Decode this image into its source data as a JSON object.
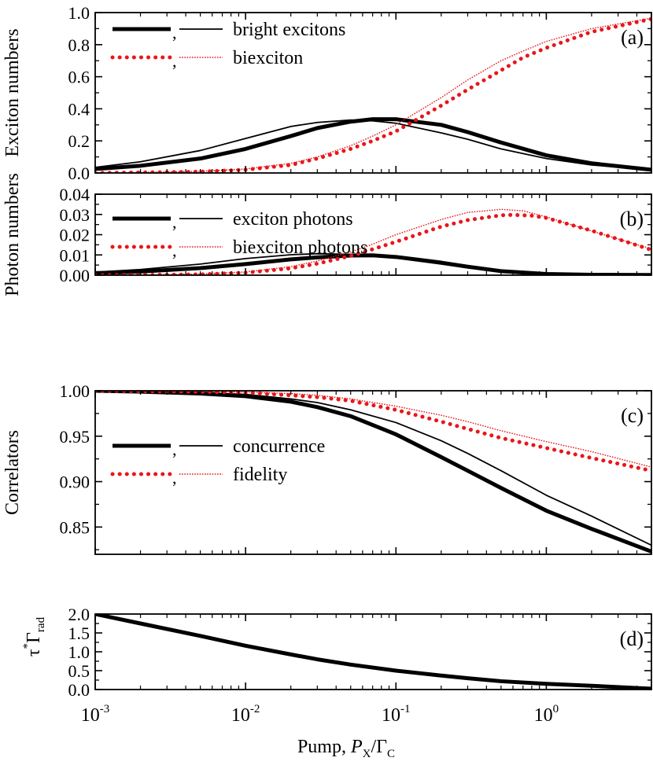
{
  "xlabel": {
    "prefix": "Pump, ",
    "P": "P",
    "P_sub": "X",
    "slash": "/",
    "G": "Γ",
    "G_sub": "C"
  },
  "colors": {
    "black": "#000000",
    "red": "#e8161a"
  },
  "chart_data": [
    {
      "id": "a",
      "type": "line",
      "panel_label": "(a)",
      "ylabel": "Exciton numbers",
      "xscale": "log",
      "xlim": [
        0.001,
        5
      ],
      "ylim": [
        0,
        1.0
      ],
      "yticks": [
        0,
        0.2,
        0.4,
        0.6,
        0.8,
        1.0
      ],
      "ytick_labels": [
        "0.0",
        "0.2",
        "0.4",
        "0.6",
        "0.8",
        "1.0"
      ],
      "legend_position": "top-left",
      "legend": [
        {
          "label": "bright excitons",
          "marks": [
            "black-thick",
            "black-thin"
          ]
        },
        {
          "label": "biexciton",
          "marks": [
            "red-dotted-thick",
            "red-dotted-thin"
          ]
        }
      ],
      "series": [
        {
          "style": "black-thick",
          "x": [
            0.001,
            0.002,
            0.005,
            0.01,
            0.02,
            0.03,
            0.05,
            0.07,
            0.1,
            0.2,
            0.3,
            0.5,
            1,
            2,
            5
          ],
          "y": [
            0.025,
            0.045,
            0.09,
            0.15,
            0.23,
            0.28,
            0.32,
            0.335,
            0.335,
            0.3,
            0.255,
            0.19,
            0.11,
            0.06,
            0.02
          ]
        },
        {
          "style": "black-thin",
          "x": [
            0.001,
            0.002,
            0.005,
            0.01,
            0.02,
            0.03,
            0.05,
            0.07,
            0.1,
            0.2,
            0.3,
            0.5,
            1,
            2,
            5
          ],
          "y": [
            0.035,
            0.07,
            0.14,
            0.215,
            0.29,
            0.315,
            0.33,
            0.325,
            0.31,
            0.25,
            0.21,
            0.15,
            0.09,
            0.05,
            0.02
          ]
        },
        {
          "style": "red-dotted-thick",
          "x": [
            0.001,
            0.002,
            0.005,
            0.01,
            0.02,
            0.03,
            0.05,
            0.07,
            0.1,
            0.2,
            0.3,
            0.5,
            0.7,
            1,
            2,
            5
          ],
          "y": [
            0.0,
            0.003,
            0.008,
            0.02,
            0.05,
            0.09,
            0.15,
            0.2,
            0.26,
            0.42,
            0.52,
            0.64,
            0.72,
            0.78,
            0.88,
            0.96
          ]
        },
        {
          "style": "red-dotted-thin",
          "x": [
            0.001,
            0.002,
            0.005,
            0.01,
            0.02,
            0.03,
            0.05,
            0.07,
            0.1,
            0.2,
            0.3,
            0.5,
            0.7,
            1,
            2,
            5
          ],
          "y": [
            0.0,
            0.004,
            0.01,
            0.025,
            0.06,
            0.1,
            0.17,
            0.23,
            0.3,
            0.47,
            0.58,
            0.7,
            0.76,
            0.82,
            0.9,
            0.965
          ]
        }
      ]
    },
    {
      "id": "b",
      "type": "line",
      "panel_label": "(b)",
      "ylabel": "Photon numbers",
      "xscale": "log",
      "xlim": [
        0.001,
        5
      ],
      "ylim": [
        0,
        0.04
      ],
      "yticks": [
        0,
        0.01,
        0.02,
        0.03,
        0.04
      ],
      "ytick_labels": [
        "0.00",
        "0.01",
        "0.02",
        "0.03",
        "0.04"
      ],
      "legend_position": "top-left",
      "legend": [
        {
          "label": "exciton photons",
          "marks": [
            "black-thick",
            "black-thin"
          ]
        },
        {
          "label": "biexciton photons",
          "marks": [
            "red-dotted-thick",
            "red-dotted-thin"
          ]
        }
      ],
      "series": [
        {
          "style": "black-thick",
          "x": [
            0.001,
            0.002,
            0.005,
            0.01,
            0.02,
            0.03,
            0.05,
            0.07,
            0.1,
            0.2,
            0.3,
            0.5,
            1,
            2,
            5
          ],
          "y": [
            0.001,
            0.0018,
            0.0035,
            0.0055,
            0.0078,
            0.0088,
            0.0097,
            0.0098,
            0.009,
            0.0062,
            0.0042,
            0.002,
            0.0006,
            0.0002,
            0.0001
          ]
        },
        {
          "style": "black-thin",
          "x": [
            0.001,
            0.002,
            0.005,
            0.01,
            0.02,
            0.03,
            0.05,
            0.07,
            0.1,
            0.2,
            0.3,
            0.5,
            1,
            2,
            5
          ],
          "y": [
            0.0015,
            0.0028,
            0.0055,
            0.0082,
            0.0101,
            0.0106,
            0.0103,
            0.0097,
            0.0085,
            0.0055,
            0.0036,
            0.0017,
            0.0005,
            0.0002,
            0.0001
          ]
        },
        {
          "style": "red-dotted-thick",
          "x": [
            0.001,
            0.003,
            0.005,
            0.01,
            0.02,
            0.03,
            0.05,
            0.07,
            0.1,
            0.2,
            0.3,
            0.5,
            0.6,
            0.8,
            1,
            2,
            5
          ],
          "y": [
            0.0,
            0.0002,
            0.0004,
            0.0012,
            0.0034,
            0.0057,
            0.0095,
            0.0128,
            0.0165,
            0.024,
            0.0272,
            0.0296,
            0.0298,
            0.0294,
            0.0283,
            0.022,
            0.0125
          ]
        },
        {
          "style": "red-dotted-thin",
          "x": [
            0.001,
            0.003,
            0.005,
            0.01,
            0.02,
            0.03,
            0.05,
            0.07,
            0.1,
            0.2,
            0.3,
            0.5,
            0.7,
            1,
            2,
            5
          ],
          "y": [
            0.0,
            0.0003,
            0.0006,
            0.0016,
            0.0042,
            0.007,
            0.0115,
            0.0153,
            0.02,
            0.0275,
            0.031,
            0.0325,
            0.0318,
            0.0288,
            0.0218,
            0.013
          ]
        }
      ]
    },
    {
      "id": "c",
      "type": "line",
      "panel_label": "(c)",
      "ylabel": "Correlators",
      "xscale": "log",
      "xlim": [
        0.001,
        5
      ],
      "ylim": [
        0.82,
        1.0
      ],
      "yticks": [
        0.85,
        0.9,
        0.95,
        1.0
      ],
      "ytick_labels": [
        "0.85",
        "0.90",
        "0.95",
        "1.00"
      ],
      "legend_position": "lower-left",
      "legend": [
        {
          "label": "concurrence",
          "marks": [
            "black-thick",
            "black-thin"
          ]
        },
        {
          "label": "fidelity",
          "marks": [
            "red-dotted-thick",
            "red-dotted-thin"
          ]
        }
      ],
      "series": [
        {
          "style": "black-thick",
          "x": [
            0.001,
            0.002,
            0.005,
            0.01,
            0.02,
            0.03,
            0.05,
            0.1,
            0.2,
            0.3,
            0.5,
            1,
            2,
            5
          ],
          "y": [
            1.0,
            0.999,
            0.997,
            0.994,
            0.988,
            0.982,
            0.972,
            0.952,
            0.927,
            0.912,
            0.893,
            0.868,
            0.848,
            0.823
          ]
        },
        {
          "style": "black-thin",
          "x": [
            0.001,
            0.002,
            0.005,
            0.01,
            0.02,
            0.03,
            0.05,
            0.1,
            0.2,
            0.3,
            0.5,
            1,
            2,
            5
          ],
          "y": [
            1.0,
            0.9995,
            0.998,
            0.996,
            0.991,
            0.987,
            0.979,
            0.965,
            0.945,
            0.931,
            0.912,
            0.885,
            0.862,
            0.83
          ]
        },
        {
          "style": "red-dotted-thick",
          "x": [
            0.001,
            0.002,
            0.005,
            0.01,
            0.02,
            0.03,
            0.05,
            0.1,
            0.2,
            0.3,
            0.5,
            1,
            2,
            5
          ],
          "y": [
            1.0,
            0.9995,
            0.999,
            0.998,
            0.995,
            0.993,
            0.989,
            0.979,
            0.966,
            0.958,
            0.948,
            0.937,
            0.926,
            0.912
          ]
        },
        {
          "style": "red-dotted-thin",
          "x": [
            0.001,
            0.002,
            0.005,
            0.01,
            0.02,
            0.03,
            0.05,
            0.1,
            0.2,
            0.3,
            0.5,
            1,
            2,
            5
          ],
          "y": [
            1.0,
            0.9998,
            0.9993,
            0.9985,
            0.997,
            0.995,
            0.991,
            0.983,
            0.973,
            0.966,
            0.956,
            0.944,
            0.933,
            0.916
          ]
        }
      ]
    },
    {
      "id": "d",
      "type": "line",
      "panel_label": "(d)",
      "ylabel": {
        "tau": "τ",
        "star": "*",
        "gamma": "Γ",
        "sub": "rad"
      },
      "xscale": "log",
      "xlim": [
        0.001,
        5
      ],
      "ylim": [
        0,
        2.0
      ],
      "yticks": [
        0,
        0.5,
        1.0,
        1.5,
        2.0
      ],
      "ytick_labels": [
        "0.0",
        "0.5",
        "1.0",
        "1.5",
        "2.0"
      ],
      "xticks": [
        0.001,
        0.01,
        0.1,
        1
      ],
      "xtick_labels": [
        {
          "base": "10",
          "exp": "-3"
        },
        {
          "base": "10",
          "exp": "-2"
        },
        {
          "base": "10",
          "exp": "-1"
        },
        {
          "base": "10",
          "exp": "0"
        }
      ],
      "series": [
        {
          "style": "black-thick",
          "x": [
            0.001,
            0.002,
            0.005,
            0.01,
            0.02,
            0.03,
            0.05,
            0.1,
            0.2,
            0.3,
            0.5,
            1,
            2,
            5
          ],
          "y": [
            2.0,
            1.75,
            1.42,
            1.16,
            0.93,
            0.8,
            0.66,
            0.5,
            0.37,
            0.3,
            0.22,
            0.15,
            0.1,
            0.02
          ]
        }
      ]
    }
  ]
}
